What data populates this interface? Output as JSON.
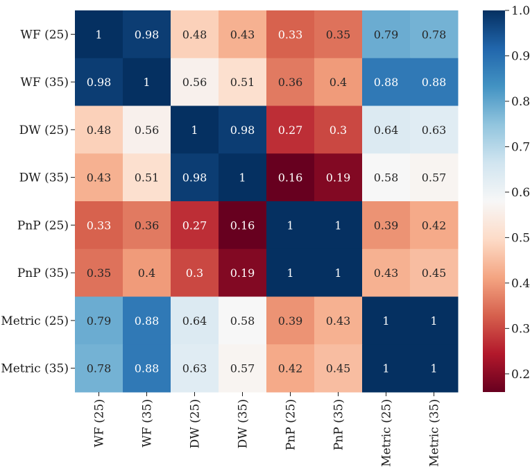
{
  "chart_data": {
    "type": "heatmap",
    "title": "",
    "xlabel": "",
    "ylabel": "",
    "row_labels": [
      "WF (25)",
      "WF (35)",
      "DW (25)",
      "DW (35)",
      "PnP (25)",
      "PnP (35)",
      "Metric (25)",
      "Metric (35)"
    ],
    "col_labels": [
      "WF (25)",
      "WF (35)",
      "DW (25)",
      "DW (35)",
      "PnP (25)",
      "PnP (35)",
      "Metric (25)",
      "Metric (35)"
    ],
    "values": [
      [
        1,
        0.98,
        0.48,
        0.43,
        0.33,
        0.35,
        0.79,
        0.78
      ],
      [
        0.98,
        1,
        0.56,
        0.51,
        0.36,
        0.4,
        0.88,
        0.88
      ],
      [
        0.48,
        0.56,
        1,
        0.98,
        0.27,
        0.3,
        0.64,
        0.63
      ],
      [
        0.43,
        0.51,
        0.98,
        1,
        0.16,
        0.19,
        0.58,
        0.57
      ],
      [
        0.33,
        0.36,
        0.27,
        0.16,
        1,
        1,
        0.39,
        0.42
      ],
      [
        0.35,
        0.4,
        0.3,
        0.19,
        1,
        1,
        0.43,
        0.45
      ],
      [
        0.79,
        0.88,
        0.64,
        0.58,
        0.39,
        0.43,
        1,
        1
      ],
      [
        0.78,
        0.88,
        0.63,
        0.57,
        0.42,
        0.45,
        1,
        1
      ]
    ],
    "annotations": [
      [
        "1",
        "0.98",
        "0.48",
        "0.43",
        "0.33",
        "0.35",
        "0.79",
        "0.78"
      ],
      [
        "0.98",
        "1",
        "0.56",
        "0.51",
        "0.36",
        "0.4",
        "0.88",
        "0.88"
      ],
      [
        "0.48",
        "0.56",
        "1",
        "0.98",
        "0.27",
        "0.3",
        "0.64",
        "0.63"
      ],
      [
        "0.43",
        "0.51",
        "0.98",
        "1",
        "0.16",
        "0.19",
        "0.58",
        "0.57"
      ],
      [
        "0.33",
        "0.36",
        "0.27",
        "0.16",
        "1",
        "1",
        "0.39",
        "0.42"
      ],
      [
        "0.35",
        "0.4",
        "0.3",
        "0.19",
        "1",
        "1",
        "0.43",
        "0.45"
      ],
      [
        "0.79",
        "0.88",
        "0.64",
        "0.58",
        "0.39",
        "0.43",
        "1",
        "1"
      ],
      [
        "0.78",
        "0.88",
        "0.63",
        "0.57",
        "0.42",
        "0.45",
        "1",
        "1"
      ]
    ],
    "colormap": "RdBu",
    "vmin": 0.16,
    "vmax": 1.0,
    "colorbar": {
      "ticks": [
        0.2,
        0.3,
        0.4,
        0.5,
        0.6,
        0.7,
        0.8,
        0.9,
        1.0
      ],
      "tick_labels": [
        "0.2",
        "0.3",
        "0.4",
        "0.5",
        "0.6",
        "0.7",
        "0.8",
        "0.9",
        "1.0"
      ]
    }
  }
}
